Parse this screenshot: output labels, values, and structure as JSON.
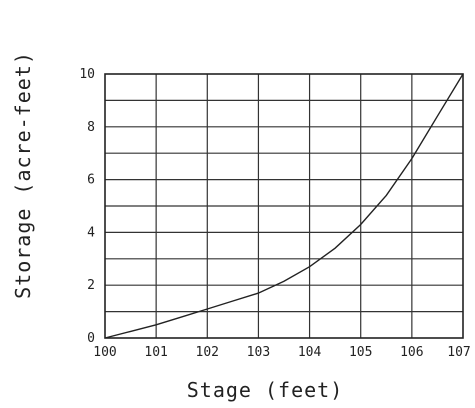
{
  "chart_data": {
    "type": "line",
    "title": "",
    "xlabel": "Stage (feet)",
    "ylabel": "Storage (acre-feet)",
    "xlim": [
      100,
      107
    ],
    "ylim": [
      0,
      10
    ],
    "grid": true,
    "x_tick_labels": [
      "100",
      "101",
      "102",
      "103",
      "104",
      "105",
      "106",
      "107"
    ],
    "y_tick_labels": [
      "0",
      "2",
      "4",
      "6",
      "8",
      "10"
    ],
    "series": [
      {
        "x": [
          100,
          100.5,
          101,
          101.5,
          102,
          102.5,
          103,
          103.5,
          104,
          104.5,
          105,
          105.5,
          106,
          106.5,
          107
        ],
        "y": [
          0,
          0.25,
          0.5,
          0.8,
          1.1,
          1.4,
          1.7,
          2.15,
          2.7,
          3.4,
          4.3,
          5.4,
          6.8,
          8.4,
          10
        ]
      }
    ]
  }
}
